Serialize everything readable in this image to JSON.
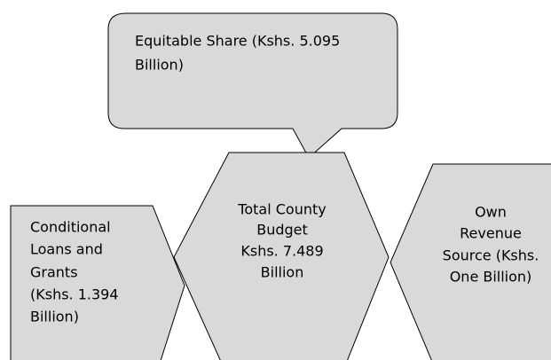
{
  "callout": {
    "lines": [
      "Equitable Share (Kshs. 5.095",
      "Billion)"
    ]
  },
  "center": {
    "lines": [
      "Total County",
      "Budget",
      "Kshs. 7.489",
      "Billion"
    ]
  },
  "left": {
    "lines": [
      "Conditional",
      "Loans and",
      "Grants",
      "(Kshs. 1.394",
      "Billion)"
    ]
  },
  "right": {
    "lines": [
      "Own",
      "Revenue",
      "Source (Kshs.",
      "One Billion)"
    ]
  }
}
